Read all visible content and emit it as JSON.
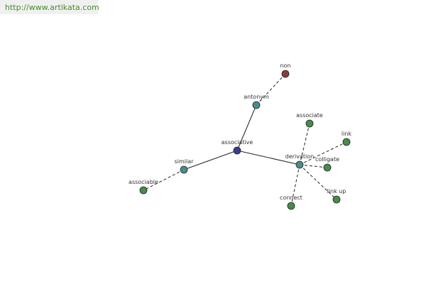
{
  "header": {
    "url": "http://www.artikata.com"
  },
  "nodes": [
    {
      "label": "associative"
    },
    {
      "label": "antonym"
    },
    {
      "label": "non"
    },
    {
      "label": "similar"
    },
    {
      "label": "associable"
    },
    {
      "label": "derivation"
    },
    {
      "label": "associate"
    },
    {
      "label": "link"
    },
    {
      "label": "colligate"
    },
    {
      "label": "link up"
    },
    {
      "label": "connect"
    }
  ]
}
